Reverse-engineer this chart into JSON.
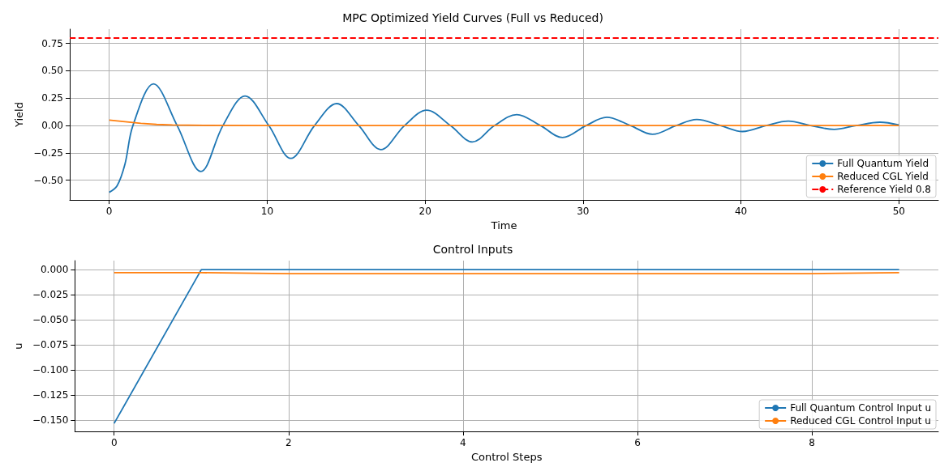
{
  "chart_data": [
    {
      "type": "line",
      "title": "MPC Optimized Yield Curves (Full vs Reduced)",
      "xlabel": "Time",
      "ylabel": "Yield",
      "series": [
        {
          "name": "Full Quantum Yield",
          "color": "#1f77b4",
          "x": [
            0,
            0.5,
            1,
            1.5,
            2.8,
            4.3,
            5.8,
            7.2,
            8.6,
            10.1,
            11.5,
            13.0,
            14.4,
            15.8,
            17.2,
            18.7,
            20.1,
            21.6,
            23.0,
            24.4,
            25.8,
            27.3,
            28.7,
            30.2,
            31.5,
            33.0,
            34.4,
            35.9,
            37.2,
            38.7,
            40.1,
            41.6,
            43.0,
            44.4,
            45.9,
            47.3,
            48.8,
            50
          ],
          "values": [
            -0.61,
            -0.55,
            -0.35,
            0,
            0.38,
            0,
            -0.42,
            0,
            0.27,
            0,
            -0.3,
            0,
            0.2,
            0,
            -0.22,
            0,
            0.14,
            0,
            -0.15,
            0,
            0.1,
            0,
            -0.11,
            0,
            0.075,
            0,
            -0.08,
            0,
            0.055,
            0,
            -0.055,
            0,
            0.04,
            0,
            -0.035,
            0,
            0.03,
            0.005
          ]
        },
        {
          "name": "Reduced CGL Yield",
          "color": "#ff7f0e",
          "x": [
            0,
            1,
            2,
            3,
            4,
            6,
            10,
            20,
            30,
            40,
            50
          ],
          "values": [
            0.05,
            0.035,
            0.02,
            0.01,
            0.005,
            0.002,
            0,
            0,
            0,
            0,
            0
          ]
        }
      ],
      "ref_lines": [
        {
          "axis": "y",
          "value": 0.8,
          "label": "Reference Yield 0.8",
          "color": "#ff0000",
          "line_style": "dashed"
        }
      ],
      "xlim": [
        -2.5,
        52.5
      ],
      "ylim": [
        -0.68,
        0.88
      ],
      "xticks": [
        0,
        10,
        20,
        30,
        40,
        50
      ],
      "yticks": [
        {
          "value": -0.5,
          "label": "−0.50"
        },
        {
          "value": -0.25,
          "label": "−0.25"
        },
        {
          "value": 0,
          "label": "0.00"
        },
        {
          "value": 0.25,
          "label": "0.25"
        },
        {
          "value": 0.5,
          "label": "0.50"
        },
        {
          "value": 0.75,
          "label": "0.75"
        }
      ],
      "grid": true,
      "legend": "bottom right",
      "marker": "none",
      "line_style": "solid"
    },
    {
      "type": "line",
      "title": "Control Inputs",
      "xlabel": "Control Steps",
      "ylabel": "u",
      "series": [
        {
          "name": "Full Quantum Control Input u",
          "color": "#1f77b4",
          "x": [
            0,
            1,
            2,
            3,
            4,
            5,
            6,
            7,
            8,
            9
          ],
          "values": [
            -0.153,
            0,
            0,
            0,
            0,
            0,
            0,
            0,
            0,
            0
          ]
        },
        {
          "name": "Reduced CGL Control Input u",
          "color": "#ff7f0e",
          "x": [
            0,
            1,
            2,
            3,
            4,
            5,
            6,
            7,
            8,
            9
          ],
          "values": [
            -0.003,
            -0.003,
            -0.004,
            -0.004,
            -0.004,
            -0.004,
            -0.004,
            -0.004,
            -0.004,
            -0.003
          ]
        }
      ],
      "xlim": [
        -0.45,
        9.45
      ],
      "ylim": [
        -0.161,
        0.009
      ],
      "xticks": [
        0,
        2,
        4,
        6,
        8
      ],
      "yticks": [
        {
          "value": -0.15,
          "label": "−0.150"
        },
        {
          "value": -0.125,
          "label": "−0.125"
        },
        {
          "value": -0.1,
          "label": "−0.100"
        },
        {
          "value": -0.075,
          "label": "−0.075"
        },
        {
          "value": -0.05,
          "label": "−0.050"
        },
        {
          "value": -0.025,
          "label": "−0.025"
        },
        {
          "value": 0,
          "label": "0.000"
        }
      ],
      "grid": true,
      "legend": "bottom right",
      "marker": "none",
      "line_style": "solid"
    }
  ]
}
